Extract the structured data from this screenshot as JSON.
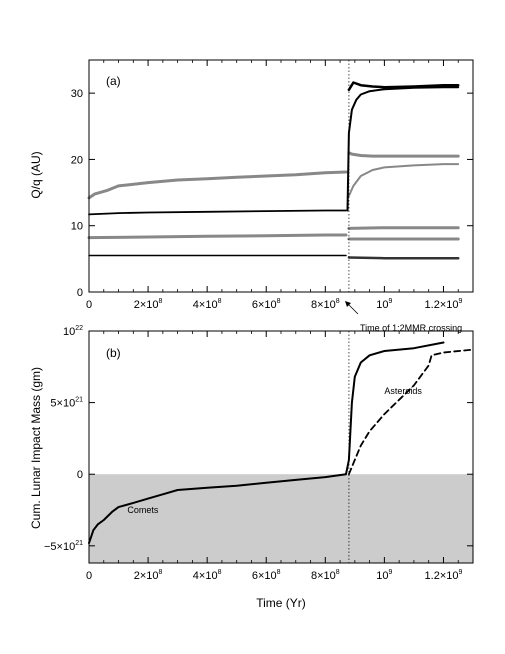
{
  "chart_data": [
    {
      "type": "line",
      "panel_label": "(a)",
      "ylabel": "Q/q (AU)",
      "xlim": [
        0,
        1300000000
      ],
      "ylim": [
        0,
        35
      ],
      "yticks": [
        {
          "value": 0,
          "label": "0"
        },
        {
          "value": 10,
          "label": "10"
        },
        {
          "value": 20,
          "label": "20"
        },
        {
          "value": 30,
          "label": "30"
        }
      ],
      "xticks": [
        {
          "value": 0,
          "base": "0",
          "exp": ""
        },
        {
          "value": 200000000,
          "base": "2×10",
          "exp": "8"
        },
        {
          "value": 400000000,
          "base": "4×10",
          "exp": "8"
        },
        {
          "value": 600000000,
          "base": "6×10",
          "exp": "8"
        },
        {
          "value": 800000000,
          "base": "8×10",
          "exp": "8"
        },
        {
          "value": 1000000000,
          "base": "10",
          "exp": "9"
        },
        {
          "value": 1200000000,
          "base": "1.2×10",
          "exp": "9"
        }
      ],
      "event_x": 880000000,
      "annotation": "Time of 1:2MMR crossing",
      "series": [
        {
          "color": "#888888",
          "width": 3,
          "x": [
            0,
            20000000,
            60000000,
            100000000,
            200000000,
            300000000,
            400000000,
            500000000,
            600000000,
            700000000,
            800000000,
            870000000
          ],
          "y": [
            14.2,
            14.8,
            15.3,
            16.0,
            16.5,
            16.9,
            17.1,
            17.3,
            17.5,
            17.7,
            18.0,
            18.1
          ]
        },
        {
          "color": "#888888",
          "width": 3,
          "x": [
            880000000,
            890000000,
            920000000,
            960000000,
            1000000000,
            1100000000,
            1200000000,
            1250000000
          ],
          "y": [
            21.0,
            20.8,
            20.6,
            20.5,
            20.5,
            20.5,
            20.5,
            20.5
          ]
        },
        {
          "color": "#888888",
          "width": 2,
          "x": [
            880000000,
            895000000,
            920000000,
            960000000,
            1000000000,
            1100000000,
            1200000000,
            1250000000
          ],
          "y": [
            14.5,
            16.0,
            17.5,
            18.4,
            18.8,
            19.1,
            19.3,
            19.3
          ]
        },
        {
          "color": "#000000",
          "width": 1.8,
          "x": [
            0,
            100000000,
            200000000,
            400000000,
            600000000,
            800000000,
            870000000
          ],
          "y": [
            11.7,
            11.9,
            12.0,
            12.1,
            12.2,
            12.3,
            12.3
          ]
        },
        {
          "color": "#000000",
          "width": 2,
          "x": [
            875000000,
            880000000,
            890000000,
            905000000,
            920000000,
            950000000,
            1000000000,
            1100000000,
            1200000000,
            1250000000
          ],
          "y": [
            12.3,
            24.0,
            27.5,
            29.0,
            29.8,
            30.3,
            30.6,
            30.8,
            30.9,
            30.9
          ]
        },
        {
          "color": "#000000",
          "width": 2.5,
          "x": [
            880000000,
            895000000,
            920000000,
            960000000,
            1000000000,
            1100000000,
            1200000000,
            1250000000
          ],
          "y": [
            30.5,
            31.6,
            31.2,
            31.0,
            30.9,
            31.0,
            31.2,
            31.2
          ]
        },
        {
          "color": "#888888",
          "width": 3,
          "x": [
            0,
            200000000,
            400000000,
            600000000,
            800000000,
            870000000
          ],
          "y": [
            8.2,
            8.3,
            8.4,
            8.5,
            8.6,
            8.6
          ]
        },
        {
          "color": "#888888",
          "width": 3,
          "x": [
            880000000,
            1000000000,
            1250000000
          ],
          "y": [
            9.6,
            9.7,
            9.7
          ]
        },
        {
          "color": "#888888",
          "width": 3,
          "x": [
            880000000,
            1000000000,
            1250000000
          ],
          "y": [
            8.0,
            8.0,
            8.0
          ]
        },
        {
          "color": "#000000",
          "width": 1.5,
          "x": [
            0,
            400000000,
            870000000
          ],
          "y": [
            5.5,
            5.5,
            5.5
          ]
        },
        {
          "color": "#333333",
          "width": 2.5,
          "x": [
            880000000,
            1000000000,
            1250000000
          ],
          "y": [
            5.2,
            5.1,
            5.1
          ]
        }
      ]
    },
    {
      "type": "line",
      "panel_label": "(b)",
      "ylabel": "Cum. Lunar Impact Mass (gm)",
      "xlabel": "Time (Yr)",
      "xlim": [
        0,
        1300000000
      ],
      "ylim": [
        -6.2e+21,
        1e+22
      ],
      "negative_region": {
        "from": -6.2e+21,
        "to": 0,
        "color": "#cccccc"
      },
      "yticks": [
        {
          "value": -5e+21,
          "base": "−5×10",
          "exp": "21"
        },
        {
          "value": 0,
          "base": "0",
          "exp": ""
        },
        {
          "value": 5e+21,
          "base": "5×10",
          "exp": "21"
        },
        {
          "value": 1e+22,
          "base": "10",
          "exp": "22"
        }
      ],
      "xticks": [
        {
          "value": 0,
          "base": "0",
          "exp": ""
        },
        {
          "value": 200000000,
          "base": "2×10",
          "exp": "8"
        },
        {
          "value": 400000000,
          "base": "4×10",
          "exp": "8"
        },
        {
          "value": 600000000,
          "base": "6×10",
          "exp": "8"
        },
        {
          "value": 800000000,
          "base": "8×10",
          "exp": "8"
        },
        {
          "value": 1000000000,
          "base": "10",
          "exp": "9"
        },
        {
          "value": 1200000000,
          "base": "1.2×10",
          "exp": "9"
        }
      ],
      "event_x": 880000000,
      "series": [
        {
          "name": "Comets",
          "color": "#000000",
          "width": 2,
          "dash": "",
          "x": [
            0,
            5000000,
            15000000,
            30000000,
            50000000,
            80000000,
            100000000,
            150000000,
            200000000,
            250000000,
            300000000,
            400000000,
            500000000,
            600000000,
            700000000,
            800000000,
            870000000,
            880000000,
            885000000,
            890000000,
            900000000,
            920000000,
            950000000,
            1000000000,
            1100000000,
            1200000000
          ],
          "y": [
            -4.8e+21,
            -4.5e+21,
            -3.9e+21,
            -3.5e+21,
            -3.2e+21,
            -2.6e+21,
            -2.3e+21,
            -2e+21,
            -1.7e+21,
            -1.4e+21,
            -1.1e+21,
            -9.5e+20,
            -8e+20,
            -6e+20,
            -4e+20,
            -2e+20,
            0.0,
            1e+21,
            3e+21,
            5e+21,
            6.8e+21,
            7.8e+21,
            8.3e+21,
            8.6e+21,
            8.8e+21,
            9.2e+21
          ]
        },
        {
          "name": "Asteroids",
          "color": "#000000",
          "width": 1.8,
          "dash": "6,4",
          "x": [
            880000000,
            900000000,
            920000000,
            950000000,
            1000000000,
            1050000000,
            1100000000,
            1150000000,
            1160000000,
            1200000000,
            1300000000
          ],
          "y": [
            0.0,
            1e+21,
            2e+21,
            3e+21,
            4.2e+21,
            5.2e+21,
            6.2e+21,
            7.6e+21,
            8.3e+21,
            8.5e+21,
            8.7e+21
          ]
        }
      ],
      "labels": [
        {
          "text": "Comets",
          "x": 130000000,
          "y": -2.7e+21
        },
        {
          "text": "Asteroids",
          "x": 1000000000,
          "y": 5.6e+21
        }
      ]
    }
  ]
}
